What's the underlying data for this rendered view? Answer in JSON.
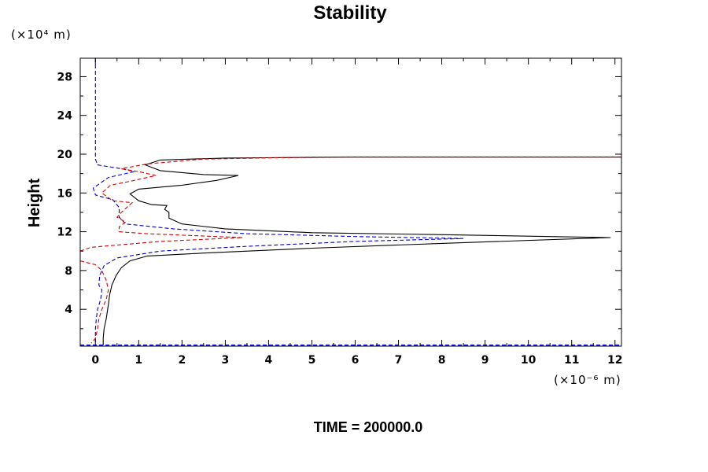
{
  "chart_data": {
    "type": "line",
    "title": "Stability",
    "xlabel": "",
    "ylabel": "Height",
    "x_unit": "(×10⁻⁶ m)",
    "y_unit": "(×10⁴ m)",
    "xlim": [
      -0.35,
      12.15
    ],
    "ylim": [
      0.2,
      29.9
    ],
    "x_ticks": [
      0,
      1,
      2,
      3,
      4,
      5,
      6,
      7,
      8,
      9,
      10,
      11,
      12
    ],
    "y_ticks": [
      4,
      8,
      12,
      16,
      20,
      24,
      28
    ],
    "grid": false,
    "footer": "TIME = 200000.0",
    "series": [
      {
        "color": "#000000",
        "dash": "solid",
        "points": [
          [
            0.18,
            0.3
          ],
          [
            0.18,
            1.0
          ],
          [
            0.2,
            2.0
          ],
          [
            0.25,
            3.0
          ],
          [
            0.3,
            4.5
          ],
          [
            0.33,
            5.5
          ],
          [
            0.38,
            6.5
          ],
          [
            0.48,
            7.5
          ],
          [
            0.6,
            8.3
          ],
          [
            0.8,
            9.0
          ],
          [
            1.2,
            9.5
          ],
          [
            2.5,
            9.8
          ],
          [
            5.0,
            10.3
          ],
          [
            8.0,
            10.8
          ],
          [
            11.9,
            11.4
          ],
          [
            8.0,
            11.7
          ],
          [
            5.0,
            11.9
          ],
          [
            3.0,
            12.3
          ],
          [
            2.0,
            12.8
          ],
          [
            1.7,
            13.4
          ],
          [
            1.7,
            14.0
          ],
          [
            1.6,
            14.3
          ],
          [
            1.65,
            14.7
          ],
          [
            1.3,
            14.8
          ],
          [
            1.0,
            15.2
          ],
          [
            0.8,
            15.9
          ],
          [
            1.0,
            16.4
          ],
          [
            2.0,
            16.8
          ],
          [
            2.8,
            17.3
          ],
          [
            3.3,
            17.8
          ],
          [
            2.5,
            17.9
          ],
          [
            1.5,
            18.3
          ],
          [
            1.15,
            18.9
          ],
          [
            1.5,
            19.4
          ],
          [
            3.0,
            19.6
          ],
          [
            6.0,
            19.7
          ],
          [
            9.0,
            19.7
          ],
          [
            12.15,
            19.7
          ]
        ]
      },
      {
        "color": "#0000cc",
        "dash": "dashed",
        "points": [
          [
            0.0,
            29.9
          ],
          [
            0.0,
            25.0
          ],
          [
            0.0,
            22.0
          ],
          [
            0.0,
            19.5
          ],
          [
            0.05,
            18.9
          ],
          [
            0.6,
            18.5
          ],
          [
            0.9,
            18.2
          ],
          [
            0.3,
            17.6
          ],
          [
            -0.05,
            16.5
          ],
          [
            0.0,
            15.8
          ],
          [
            0.4,
            15.3
          ],
          [
            0.55,
            14.5
          ],
          [
            0.55,
            13.5
          ],
          [
            0.7,
            12.8
          ],
          [
            1.8,
            12.3
          ],
          [
            3.5,
            11.8
          ],
          [
            6.0,
            11.5
          ],
          [
            8.5,
            11.3
          ],
          [
            6.0,
            11.0
          ],
          [
            3.5,
            10.5
          ],
          [
            1.5,
            10.0
          ],
          [
            0.5,
            9.3
          ],
          [
            0.2,
            8.5
          ],
          [
            0.1,
            7.5
          ],
          [
            0.08,
            6.5
          ],
          [
            0.15,
            6.0
          ],
          [
            0.12,
            5.0
          ],
          [
            0.05,
            4.0
          ],
          [
            0.02,
            3.0
          ],
          [
            0.0,
            2.0
          ],
          [
            0.0,
            1.0
          ],
          [
            0.0,
            0.3
          ]
        ]
      },
      {
        "color": "#dd0000",
        "dash": "dashed",
        "points": [
          [
            -0.35,
            10.0
          ],
          [
            -0.1,
            10.4
          ],
          [
            1.5,
            11.0
          ],
          [
            3.4,
            11.4
          ],
          [
            1.2,
            11.8
          ],
          [
            0.55,
            12.0
          ],
          [
            0.55,
            12.5
          ],
          [
            0.7,
            13.0
          ],
          [
            0.5,
            13.5
          ],
          [
            0.6,
            14.0
          ],
          [
            0.85,
            15.0
          ],
          [
            0.4,
            15.2
          ],
          [
            0.15,
            16.0
          ],
          [
            0.35,
            16.8
          ],
          [
            0.8,
            17.2
          ],
          [
            1.4,
            17.8
          ],
          [
            1.0,
            18.2
          ],
          [
            0.6,
            18.5
          ],
          [
            1.2,
            19.0
          ],
          [
            2.5,
            19.5
          ],
          [
            5.0,
            19.7
          ],
          [
            8.0,
            19.7
          ],
          [
            12.15,
            19.7
          ]
        ]
      },
      {
        "color": "#dd0000",
        "dash": "dashed",
        "points": [
          [
            -0.35,
            9.0
          ],
          [
            0.0,
            8.6
          ],
          [
            0.15,
            8.0
          ],
          [
            0.25,
            7.0
          ],
          [
            0.3,
            6.0
          ],
          [
            0.25,
            5.0
          ],
          [
            0.15,
            4.0
          ],
          [
            0.08,
            3.0
          ],
          [
            0.05,
            2.0
          ],
          [
            0.0,
            1.0
          ],
          [
            -0.1,
            0.5
          ]
        ]
      },
      {
        "color": "#dd0000",
        "dash": "dashed",
        "points": [
          [
            -0.35,
            0.25
          ],
          [
            12.15,
            0.25
          ]
        ]
      },
      {
        "color": "#0000cc",
        "dash": "dashed",
        "points": [
          [
            -0.35,
            0.32
          ],
          [
            12.15,
            0.32
          ]
        ]
      }
    ]
  }
}
